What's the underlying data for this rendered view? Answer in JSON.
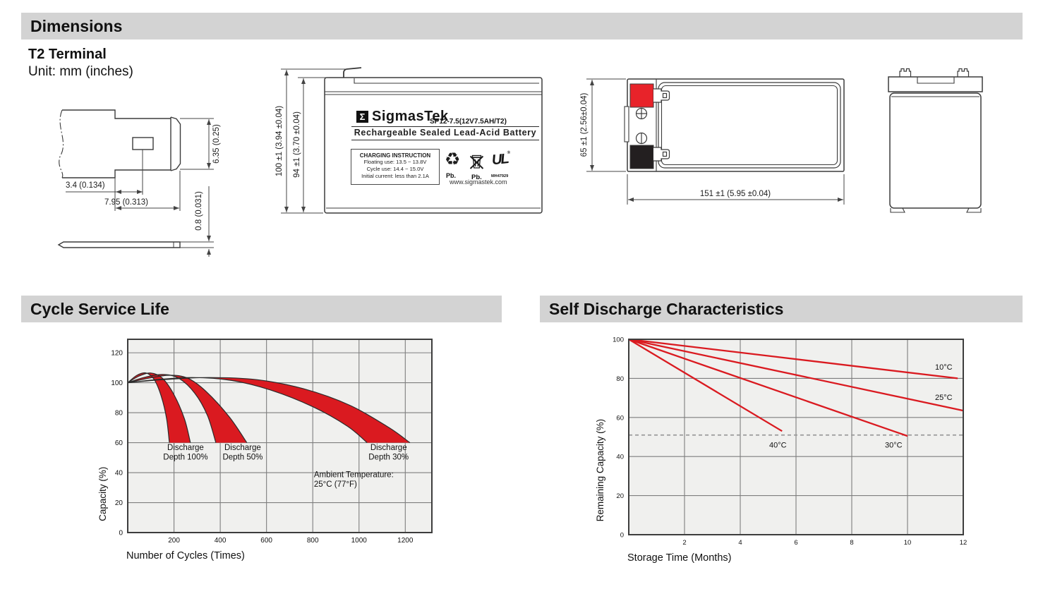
{
  "dimensions_section": {
    "header": "Dimensions",
    "subtitle": "T2 Terminal",
    "unit": "Unit: mm (inches)",
    "terminal_drawing": {
      "dim_offset": "3.4 (0.134)",
      "dim_width": "7.95 (0.313)",
      "dim_height": "6.35 (0.25)",
      "dim_thickness": "0.8 (0.031)"
    },
    "front_view": {
      "dim_total_height": "100 ±1 (3.94 ±0.04)",
      "dim_case_height": "94 ±1 (3.70 ±0.04)",
      "label": {
        "logo_glyph": "Σ",
        "brand": "SigmasTek",
        "model": "SP12-7.5(12V7.5AH/T2)",
        "battery_type": "Rechargeable Sealed Lead-Acid Battery",
        "charging_box": {
          "title": "CHARGING INSTRUCTION",
          "lines": [
            "Floating use: 13.5 ~ 13.8V",
            "Cycle use: 14.4 ~ 15.0V",
            "Initial current: less than 2.1A"
          ]
        },
        "pb_recycle": "Pb.",
        "pb_bin": "Pb.",
        "recycle_glyph": "♻",
        "ul_mark": "UL",
        "ul_reg": "®",
        "ul_code": "MH47929",
        "website": "www.sigmastek.com"
      }
    },
    "top_view": {
      "dim_height": "65 ±1 (2.56±0.04)",
      "dim_length": "151 ±1 (5.95 ±0.04)"
    }
  },
  "chart_data": [
    {
      "type": "area",
      "title": "Cycle Service Life",
      "xlabel": "Number of Cycles (Times)",
      "ylabel": "Capacity (%)",
      "xlim": [
        0,
        1315
      ],
      "ylim": [
        0,
        129
      ],
      "xticks": [
        200,
        400,
        600,
        800,
        1000,
        1200
      ],
      "yticks": [
        0,
        20,
        40,
        60,
        80,
        100,
        120
      ],
      "grid": true,
      "legend_position": "none",
      "band_fill": "#da1a20",
      "band_stroke": "#2b2b2b",
      "bands": [
        {
          "label": [
            "Discharge",
            "Depth 100%"
          ],
          "label_x": 250,
          "label_y": 55,
          "left": [
            [
              0,
              100
            ],
            [
              40,
              105
            ],
            [
              80,
              106.5
            ],
            [
              115,
              102
            ],
            [
              145,
              91
            ],
            [
              168,
              76
            ],
            [
              180,
              60
            ]
          ],
          "right": [
            [
              0,
              100
            ],
            [
              50,
              104.5
            ],
            [
              100,
              106.5
            ],
            [
              150,
              103
            ],
            [
              200,
              92
            ],
            [
              245,
              76
            ],
            [
              271,
              60
            ]
          ]
        },
        {
          "label": [
            "Discharge",
            "Depth 50%"
          ],
          "label_x": 497,
          "label_y": 55,
          "left": [
            [
              0,
              100
            ],
            [
              70,
              103.5
            ],
            [
              150,
              105.5
            ],
            [
              220,
              103
            ],
            [
              290,
              93
            ],
            [
              345,
              78
            ],
            [
              381,
              60
            ]
          ],
          "right": [
            [
              0,
              100
            ],
            [
              90,
              103
            ],
            [
              180,
              105
            ],
            [
              260,
              103
            ],
            [
              340,
              94
            ],
            [
              440,
              77
            ],
            [
              515,
              60
            ]
          ]
        },
        {
          "label": [
            "Discharge",
            "Depth 30%"
          ],
          "label_x": 1128,
          "label_y": 55,
          "left": [
            [
              0,
              100
            ],
            [
              120,
              102
            ],
            [
              280,
              103.5
            ],
            [
              450,
              101.5
            ],
            [
              620,
              95
            ],
            [
              800,
              84
            ],
            [
              950,
              71
            ],
            [
              1035,
              60
            ]
          ],
          "right": [
            [
              0,
              100
            ],
            [
              150,
              102
            ],
            [
              350,
              103.5
            ],
            [
              560,
              102
            ],
            [
              760,
              96
            ],
            [
              960,
              85
            ],
            [
              1130,
              70
            ],
            [
              1220,
              60
            ]
          ]
        }
      ],
      "note": [
        "Ambient Temperature:",
        "25°C (77°F)"
      ],
      "note_x": 805,
      "note_y": 37
    },
    {
      "type": "line",
      "title": "Self Discharge Characteristics",
      "xlabel": "Storage Time (Months)",
      "ylabel": "Remaining Capacity (%)",
      "xlim": [
        0,
        12
      ],
      "ylim": [
        0,
        100
      ],
      "xticks": [
        2,
        4,
        6,
        8,
        10,
        12
      ],
      "yticks": [
        0,
        20,
        40,
        60,
        80,
        100
      ],
      "grid": true,
      "legend_position": "inline",
      "dashed_y": 51,
      "line_color": "#da1a20",
      "series": [
        {
          "name": "10°C",
          "points": [
            [
              0,
              100
            ],
            [
              11.8,
              80
            ]
          ],
          "label_x": 11.3,
          "label_y": 84.5
        },
        {
          "name": "25°C",
          "points": [
            [
              0,
              100
            ],
            [
              12,
              63.5
            ]
          ],
          "label_x": 11.3,
          "label_y": 69
        },
        {
          "name": "30°C",
          "points": [
            [
              0,
              100
            ],
            [
              10,
              50.5
            ]
          ],
          "label_x": 9.5,
          "label_y": 44.5
        },
        {
          "name": "40°C",
          "points": [
            [
              0,
              100
            ],
            [
              5.5,
              53
            ]
          ],
          "label_x": 5.35,
          "label_y": 44.5
        }
      ]
    }
  ]
}
